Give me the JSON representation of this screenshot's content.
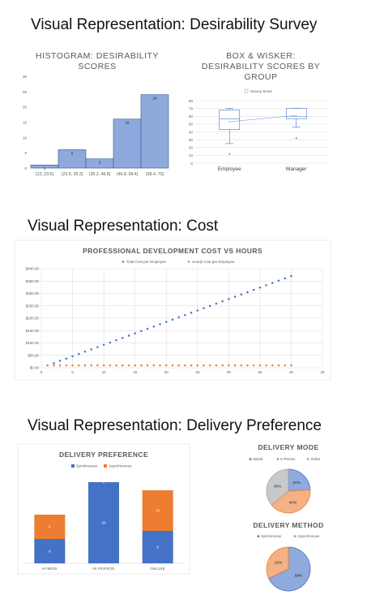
{
  "sections": [
    {
      "title": "Visual Representation: Desirability Survey"
    },
    {
      "title": "Visual Representation: Cost"
    },
    {
      "title": "Visual Representation: Delivery Preference"
    }
  ],
  "colors": {
    "blue": "#4472C4",
    "orange": "#ED7D31",
    "gray": "#A5A5A5",
    "grid": "#D9D9D9",
    "text": "#595959"
  },
  "chart_data": [
    {
      "id": "histogram",
      "type": "bar",
      "title": "HISTOGRAM: DESIRABILITY SCORES",
      "categories": [
        "[12, 23.6]",
        "(23.6, 35.2]",
        "(35.2, 46.8]",
        "(46.8, 58.4]",
        "(58.4, 70]"
      ],
      "values": [
        1,
        6,
        3,
        16,
        24
      ],
      "ylim": [
        0,
        30
      ],
      "yticks": [
        0,
        5,
        10,
        15,
        20,
        25,
        30
      ],
      "grid": false
    },
    {
      "id": "boxplot",
      "type": "box",
      "title": "BOX & WISKER: DESIRABILITY SCORES BY GROUP",
      "legend": [
        "Survey Score"
      ],
      "legend_position": "top",
      "categories": [
        "Employee",
        "Manager"
      ],
      "groups": [
        {
          "min": 25,
          "q1": 43,
          "median": 57,
          "q3": 68,
          "max": 70,
          "mean": 53,
          "outliers": [
            12
          ]
        },
        {
          "min": 46,
          "q1": 57,
          "median": 60,
          "q3": 70,
          "max": 70,
          "mean": 61,
          "outliers": [
            32
          ]
        }
      ],
      "ylim": [
        0,
        80
      ],
      "yticks": [
        0,
        10,
        20,
        30,
        40,
        50,
        60,
        70,
        80
      ],
      "grid": true
    },
    {
      "id": "cost",
      "type": "scatter",
      "title": "PROFESSIONAL DEVELOPMENT COST VS HOURS",
      "legend_position": "top",
      "xlim": [
        0,
        45
      ],
      "xticks": [
        0,
        5,
        10,
        15,
        20,
        25,
        30,
        35,
        40,
        45
      ],
      "ylim": [
        0,
        400
      ],
      "yticks": [
        0,
        50,
        100,
        150,
        200,
        250,
        300,
        350,
        400
      ],
      "ytick_labels": [
        "$0.00",
        "$50.00",
        "$100.00",
        "$150.00",
        "$200.00",
        "$250.00",
        "$300.00",
        "$350.00",
        "$400.00"
      ],
      "grid": true,
      "series": [
        {
          "name": "Total Cost per Employee",
          "color": "#4472C4",
          "x_start": 1,
          "x_end": 40,
          "slope": 9.25
        },
        {
          "name": "Hourly Cost per Employee",
          "color": "#ED7D31",
          "x_start": 1,
          "x_end": 40,
          "constant": 9.25
        }
      ]
    },
    {
      "id": "delivery_pref",
      "type": "stacked-bar",
      "title": "DELIVERY PREFERENCE",
      "legend_position": "top",
      "categories": [
        "HYBRID",
        "IN PERSON",
        "ONLINE"
      ],
      "series": [
        {
          "name": "Synchronous",
          "color": "#4472C4",
          "values": [
            6,
            20,
            8
          ]
        },
        {
          "name": "Asynchronous",
          "color": "#ED7D31",
          "values": [
            6,
            0,
            10
          ]
        }
      ],
      "segment_labels": [
        [
          "6",
          "6"
        ],
        [
          "20",
          "0"
        ],
        [
          "8",
          "10"
        ]
      ],
      "grid": false
    },
    {
      "id": "delivery_mode",
      "type": "pie",
      "title": "DELIVERY MODE",
      "legend_position": "top",
      "slices": [
        {
          "name": "Hybrid",
          "value": 24,
          "label": "24%",
          "color": "#4472C4"
        },
        {
          "name": "In Person",
          "value": 40,
          "label": "40%",
          "color": "#ED7D31"
        },
        {
          "name": "Online",
          "value": 36,
          "label": "36%",
          "color": "#A5A5A5"
        }
      ]
    },
    {
      "id": "delivery_method",
      "type": "pie",
      "title": "DELIVERY METHOD",
      "legend_position": "top",
      "slices": [
        {
          "name": "Synchronous",
          "value": 68,
          "label": "68%",
          "color": "#4472C4"
        },
        {
          "name": "Asynchronous",
          "value": 32,
          "label": "32%",
          "color": "#ED7D31"
        }
      ]
    }
  ]
}
